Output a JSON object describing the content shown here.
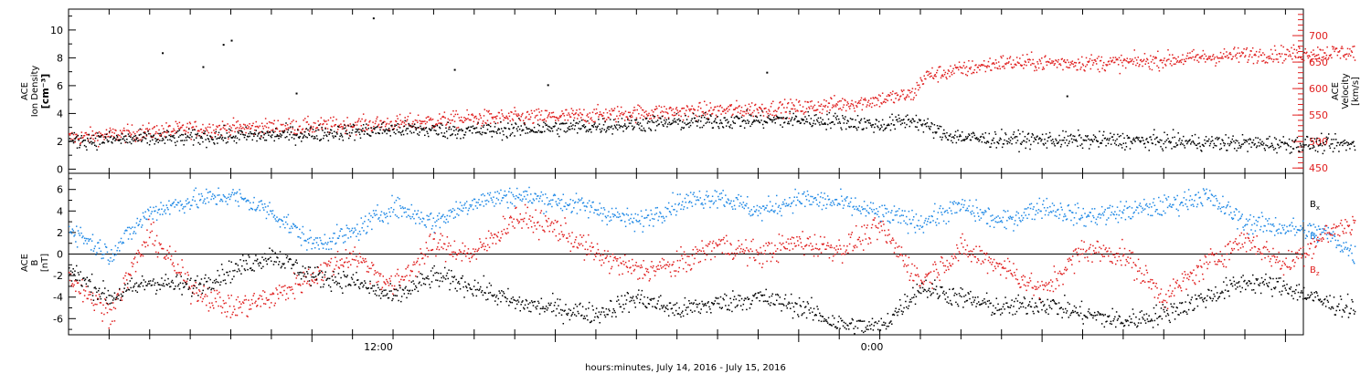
{
  "chart_data": [
    {
      "type": "scatter",
      "panel": "top",
      "ylabel_left": [
        "ACE",
        "Ion Density",
        "[cm⁻³]"
      ],
      "ylabel_right": [
        "ACE",
        "Velocity",
        "[km/s]"
      ],
      "ylim_left": [
        -0.3,
        11.5
      ],
      "ylim_right": [
        440,
        750
      ],
      "yticks_left": [
        "0",
        "2",
        "4",
        "6",
        "8",
        "10"
      ],
      "yticks_right": [
        "450",
        "500",
        "550",
        "600",
        "650",
        "700"
      ],
      "series": [
        {
          "color": "#000000",
          "axis": "left",
          "anchors": [
            [
              0,
              2.1
            ],
            [
              3,
              2.3
            ],
            [
              6,
              2.6
            ],
            [
              8,
              2.9
            ],
            [
              10,
              2.8
            ],
            [
              12,
              3.0
            ],
            [
              14,
              3.3
            ],
            [
              16,
              3.5
            ],
            [
              18,
              3.6
            ],
            [
              19,
              3.5
            ],
            [
              20,
              3.2
            ],
            [
              20.8,
              3.6
            ],
            [
              21.6,
              2.5
            ],
            [
              22.5,
              2.2
            ],
            [
              26,
              2.1
            ],
            [
              29,
              1.9
            ],
            [
              31.7,
              1.8
            ]
          ],
          "scatter": 0.6,
          "spikes": [
            [
              7.5,
              10.9
            ],
            [
              4,
              9.3
            ],
            [
              3.8,
              9.0
            ],
            [
              2.3,
              8.4
            ],
            [
              3.3,
              7.4
            ],
            [
              9.5,
              7.2
            ],
            [
              5.6,
              5.5
            ],
            [
              11.8,
              6.1
            ],
            [
              17.2,
              7.0
            ],
            [
              24.6,
              5.3
            ]
          ]
        },
        {
          "color": "#e01e1e",
          "axis": "right",
          "anchors": [
            [
              0,
              508
            ],
            [
              3,
              525
            ],
            [
              6,
              530
            ],
            [
              8,
              535
            ],
            [
              10,
              545
            ],
            [
              12,
              548
            ],
            [
              14,
              555
            ],
            [
              16,
              560
            ],
            [
              18,
              565
            ],
            [
              19.5,
              575
            ],
            [
              20.8,
              590
            ],
            [
              21.1,
              625
            ],
            [
              23,
              650
            ],
            [
              26,
              650
            ],
            [
              29,
              665
            ],
            [
              31.7,
              670
            ]
          ],
          "scatter": 16
        }
      ]
    },
    {
      "type": "scatter",
      "panel": "bottom",
      "ylabel_left": [
        "ACE",
        "B",
        "[nT]"
      ],
      "ylim": [
        -7.5,
        7.5
      ],
      "yticks": [
        "-6",
        "-4",
        "-2",
        "0",
        "2",
        "4",
        "6"
      ],
      "series": [
        {
          "name": "Bx",
          "color": "#000000",
          "anchors": [
            [
              0,
              -1.5
            ],
            [
              1,
              -4
            ],
            [
              2,
              -2.5
            ],
            [
              3,
              -3
            ],
            [
              4,
              -1.5
            ],
            [
              5,
              0
            ],
            [
              6,
              -2
            ],
            [
              7,
              -2.5
            ],
            [
              8,
              -4
            ],
            [
              9,
              -2
            ],
            [
              10,
              -3
            ],
            [
              11,
              -4.5
            ],
            [
              12,
              -5
            ],
            [
              13,
              -5.5
            ],
            [
              14,
              -4
            ],
            [
              15,
              -5.2
            ],
            [
              16,
              -4.5
            ],
            [
              17,
              -4
            ],
            [
              18,
              -4.8
            ],
            [
              19,
              -6.5
            ],
            [
              20,
              -6.8
            ],
            [
              21,
              -3
            ],
            [
              22,
              -4
            ],
            [
              23,
              -5
            ],
            [
              24,
              -4.5
            ],
            [
              25,
              -5.5
            ],
            [
              26,
              -6.2
            ],
            [
              27,
              -5.5
            ],
            [
              28,
              -4
            ],
            [
              29,
              -2.5
            ],
            [
              30,
              -3
            ],
            [
              31,
              -4.5
            ],
            [
              31.7,
              -5
            ]
          ],
          "scatter": 1.0
        },
        {
          "name": "By",
          "color": "#1e88e5",
          "anchors": [
            [
              0,
              2.5
            ],
            [
              1,
              0
            ],
            [
              2,
              4
            ],
            [
              3,
              5
            ],
            [
              4,
              5.5
            ],
            [
              5,
              4
            ],
            [
              6,
              1
            ],
            [
              7,
              2
            ],
            [
              8,
              4.5
            ],
            [
              9,
              3
            ],
            [
              10,
              5
            ],
            [
              11,
              5.5
            ],
            [
              12,
              5
            ],
            [
              13,
              4.2
            ],
            [
              14,
              3
            ],
            [
              15,
              4.8
            ],
            [
              16,
              5.5
            ],
            [
              17,
              4
            ],
            [
              18,
              5.2
            ],
            [
              19,
              4.8
            ],
            [
              20,
              3.8
            ],
            [
              21,
              3
            ],
            [
              22,
              4.5
            ],
            [
              23,
              3
            ],
            [
              24,
              4.5
            ],
            [
              25,
              3.5
            ],
            [
              26,
              4
            ],
            [
              27,
              4.5
            ],
            [
              28,
              5.5
            ],
            [
              29,
              3
            ],
            [
              30,
              2.5
            ],
            [
              31,
              2
            ],
            [
              31.7,
              0
            ]
          ],
          "scatter": 1.0
        },
        {
          "name": "Bz",
          "color": "#e01e1e",
          "anchors": [
            [
              0,
              -2
            ],
            [
              1,
              -5.5
            ],
            [
              2,
              2
            ],
            [
              3,
              -3
            ],
            [
              4,
              -5
            ],
            [
              5,
              -4
            ],
            [
              6,
              -2
            ],
            [
              7,
              0
            ],
            [
              8,
              -3
            ],
            [
              9,
              1
            ],
            [
              10,
              0
            ],
            [
              11,
              3.5
            ],
            [
              12,
              2.5
            ],
            [
              13,
              0
            ],
            [
              14,
              -1.5
            ],
            [
              15,
              -1
            ],
            [
              16,
              1
            ],
            [
              17,
              0
            ],
            [
              18,
              1.2
            ],
            [
              19,
              0.5
            ],
            [
              20,
              2.5
            ],
            [
              21,
              -2.5
            ],
            [
              22,
              0.5
            ],
            [
              23,
              -1
            ],
            [
              24,
              -3.5
            ],
            [
              25,
              0.5
            ],
            [
              26,
              0
            ],
            [
              27,
              -4
            ],
            [
              28,
              -1
            ],
            [
              29,
              1.5
            ],
            [
              30,
              -1
            ],
            [
              31,
              2
            ],
            [
              31.7,
              3
            ]
          ],
          "scatter": 1.2
        }
      ]
    }
  ],
  "legend": [
    {
      "name": "Bx",
      "base": "B",
      "sub": "x",
      "color": "#000000"
    },
    {
      "name": "By",
      "base": "B",
      "sub": "y",
      "color": "#1e88e5"
    },
    {
      "name": "Bz",
      "base": "B",
      "sub": "z",
      "color": "#e01e1e"
    }
  ],
  "x_axis": {
    "title": "hours:minutes, July 14, 2016 - July 15, 2016",
    "tick_labels": [
      "12:00",
      "0:00"
    ]
  }
}
